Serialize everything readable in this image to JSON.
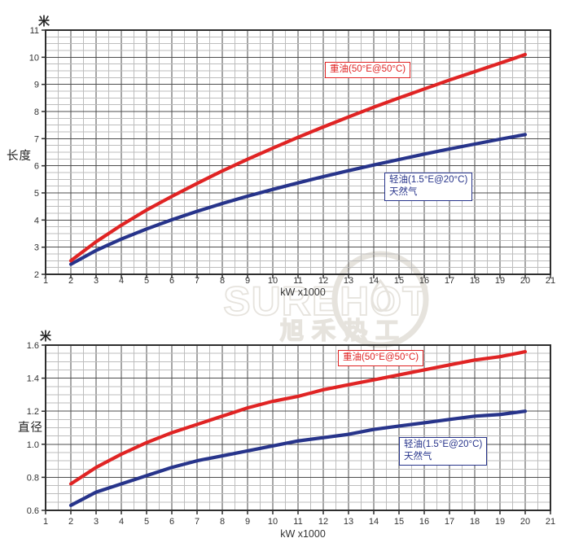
{
  "watermark": {
    "brand": "SUREHOT",
    "cn": "旭禾热工"
  },
  "chart_data": [
    {
      "type": "line",
      "title": "",
      "unit": "米",
      "ylabel": "长度",
      "xlabel": "kW x1000",
      "xlim": [
        1,
        21
      ],
      "ylim": [
        2,
        11
      ],
      "x_minor": 0.5,
      "y_major": 1,
      "y_minor": 0.25,
      "grid": "on",
      "legend_position": "inline-boxes",
      "x_tick_labels": [
        "1",
        "2",
        "3",
        "4",
        "5",
        "6",
        "7",
        "8",
        "9",
        "10",
        "11",
        "12",
        "13",
        "14",
        "15",
        "16",
        "17",
        "18",
        "19",
        "20",
        "21"
      ],
      "y_tick_labels": [
        "2",
        "3",
        "4",
        "5",
        "6",
        "7",
        "8",
        "9",
        "10",
        "11"
      ],
      "x": [
        2,
        3,
        4,
        5,
        6,
        7,
        8,
        9,
        10,
        11,
        12,
        13,
        14,
        15,
        16,
        17,
        18,
        19,
        20
      ],
      "series": [
        {
          "name": "重油(50°E@50°C)",
          "label_lines": [
            "重油(50°E@50°C)"
          ],
          "color": "#e02424",
          "values": [
            2.5,
            3.2,
            3.81,
            4.37,
            4.87,
            5.35,
            5.81,
            6.24,
            6.65,
            7.05,
            7.43,
            7.8,
            8.16,
            8.5,
            8.83,
            9.16,
            9.47,
            9.78,
            10.1
          ]
        },
        {
          "name": "轻油(1.5°E@20°C) 天然气",
          "label_lines": [
            "轻油(1.5°E@20°C)",
            "天然气"
          ],
          "color": "#27348b",
          "values": [
            2.37,
            2.88,
            3.3,
            3.67,
            4.01,
            4.32,
            4.61,
            4.88,
            5.13,
            5.37,
            5.6,
            5.82,
            6.03,
            6.23,
            6.43,
            6.62,
            6.8,
            6.98,
            7.15
          ]
        }
      ]
    },
    {
      "type": "line",
      "title": "",
      "unit": "米",
      "ylabel": "直径",
      "xlabel": "kW x1000",
      "xlim": [
        1,
        21
      ],
      "ylim": [
        0.6,
        1.6
      ],
      "x_minor": 0.5,
      "y_major": 0.2,
      "y_minor": 0.05,
      "grid": "on",
      "legend_position": "inline-boxes",
      "x_tick_labels": [
        "1",
        "2",
        "3",
        "4",
        "5",
        "6",
        "7",
        "8",
        "9",
        "10",
        "11",
        "12",
        "13",
        "14",
        "15",
        "16",
        "17",
        "18",
        "19",
        "20",
        "21"
      ],
      "y_tick_labels": [
        "0.6",
        "0.8",
        "1.0",
        "1.2",
        "1.4",
        "1.6"
      ],
      "x": [
        2,
        3,
        4,
        5,
        6,
        7,
        8,
        9,
        10,
        11,
        12,
        13,
        14,
        15,
        16,
        17,
        18,
        19,
        20
      ],
      "series": [
        {
          "name": "重油(50°E@50°C)",
          "label_lines": [
            "重油(50°E@50°C)"
          ],
          "color": "#e02424",
          "values": [
            0.76,
            0.86,
            0.94,
            1.01,
            1.07,
            1.12,
            1.17,
            1.22,
            1.26,
            1.29,
            1.33,
            1.36,
            1.39,
            1.42,
            1.45,
            1.48,
            1.51,
            1.53,
            1.56
          ]
        },
        {
          "name": "轻油(1.5°E@20°C) 天然气",
          "label_lines": [
            "轻油(1.5°E@20°C)",
            "天然气"
          ],
          "color": "#27348b",
          "values": [
            0.63,
            0.71,
            0.76,
            0.81,
            0.86,
            0.9,
            0.93,
            0.96,
            0.99,
            1.02,
            1.04,
            1.06,
            1.09,
            1.11,
            1.13,
            1.15,
            1.17,
            1.18,
            1.2
          ]
        }
      ]
    }
  ]
}
